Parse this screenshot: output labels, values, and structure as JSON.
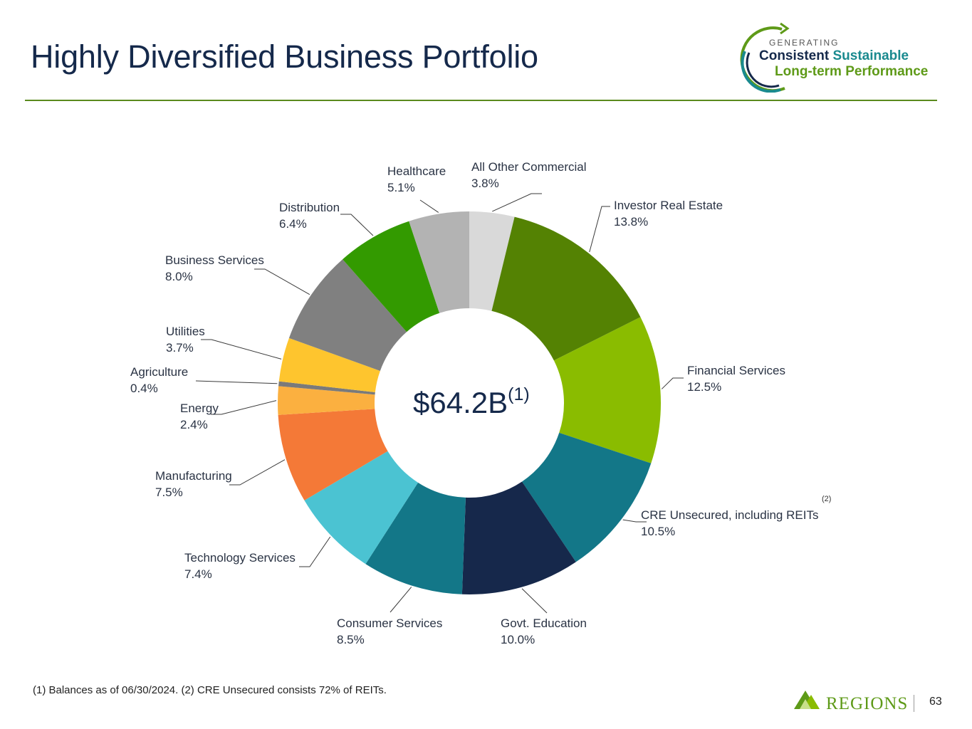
{
  "header": {
    "title": "Highly Diversified Business Portfolio"
  },
  "logo": {
    "line0": "GENERATING",
    "word1": "Consistent",
    "word2": "Sustainable",
    "line2": "Long-term Performance"
  },
  "chart_data": {
    "type": "pie",
    "subtype": "donut",
    "center_label": "$64.2B",
    "center_footnote": "(1)",
    "categories": [
      "All Other Commercial",
      "Investor Real Estate",
      "Financial Services",
      "CRE Unsecured, including REITs",
      "Govt. Education",
      "Consumer Services",
      "Technology Services",
      "Manufacturing",
      "Energy",
      "Agriculture",
      "Utilities",
      "Business Services",
      "Distribution",
      "Healthcare"
    ],
    "values": [
      3.8,
      13.8,
      12.5,
      10.5,
      10.0,
      8.5,
      7.4,
      7.5,
      2.4,
      0.4,
      3.7,
      8.0,
      6.4,
      5.1
    ],
    "value_labels": [
      "3.8%",
      "13.8%",
      "12.5%",
      "10.5%",
      "10.0%",
      "8.5%",
      "7.4%",
      "7.5%",
      "2.4%",
      "0.4%",
      "3.7%",
      "8.0%",
      "6.4%",
      "5.1%"
    ],
    "colors": [
      "#d9d9d9",
      "#548203",
      "#8abc00",
      "#137788",
      "#16284b",
      "#137788",
      "#4bc3d2",
      "#f47937",
      "#fbb040",
      "#7a7a7a",
      "#fec52e",
      "#808080",
      "#339a00",
      "#b3b3b3"
    ],
    "series_footnote": "(2)",
    "unit": "%"
  },
  "footnote": "(1) Balances as of 06/30/2024. (2) CRE Unsecured consists 72% of REITs.",
  "brand": {
    "name": "REGIONS",
    "page_number": "63"
  }
}
